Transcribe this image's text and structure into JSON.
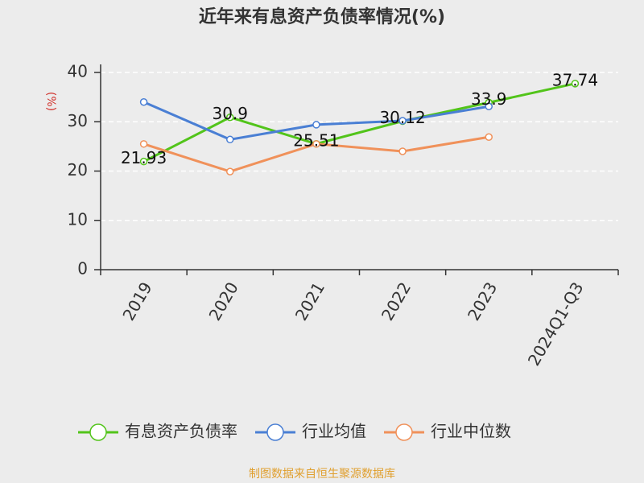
{
  "chart_data": {
    "type": "line",
    "title": "近年来有息资产负债率情况(%)",
    "y_label": "(%)",
    "footer": "制图数据来自恒生聚源数据库",
    "categories": [
      "2019",
      "2020",
      "2021",
      "2022",
      "2023",
      "2024Q1-Q3"
    ],
    "series": [
      {
        "name": "有息资产负债率",
        "color": "#52c41a",
        "values": [
          21.93,
          30.9,
          25.51,
          30.12,
          33.9,
          37.74
        ],
        "show_labels": true
      },
      {
        "name": "行业均值",
        "color": "#4a7fd4",
        "values": [
          34.0,
          26.4,
          29.4,
          30.2,
          33.1,
          null
        ]
      },
      {
        "name": "行业中位数",
        "color": "#f0915a",
        "values": [
          25.5,
          19.9,
          25.5,
          24.0,
          26.9,
          null
        ]
      }
    ],
    "ylim": [
      0,
      40
    ],
    "yticks": [
      0,
      10,
      20,
      30,
      40
    ],
    "grid": true
  }
}
